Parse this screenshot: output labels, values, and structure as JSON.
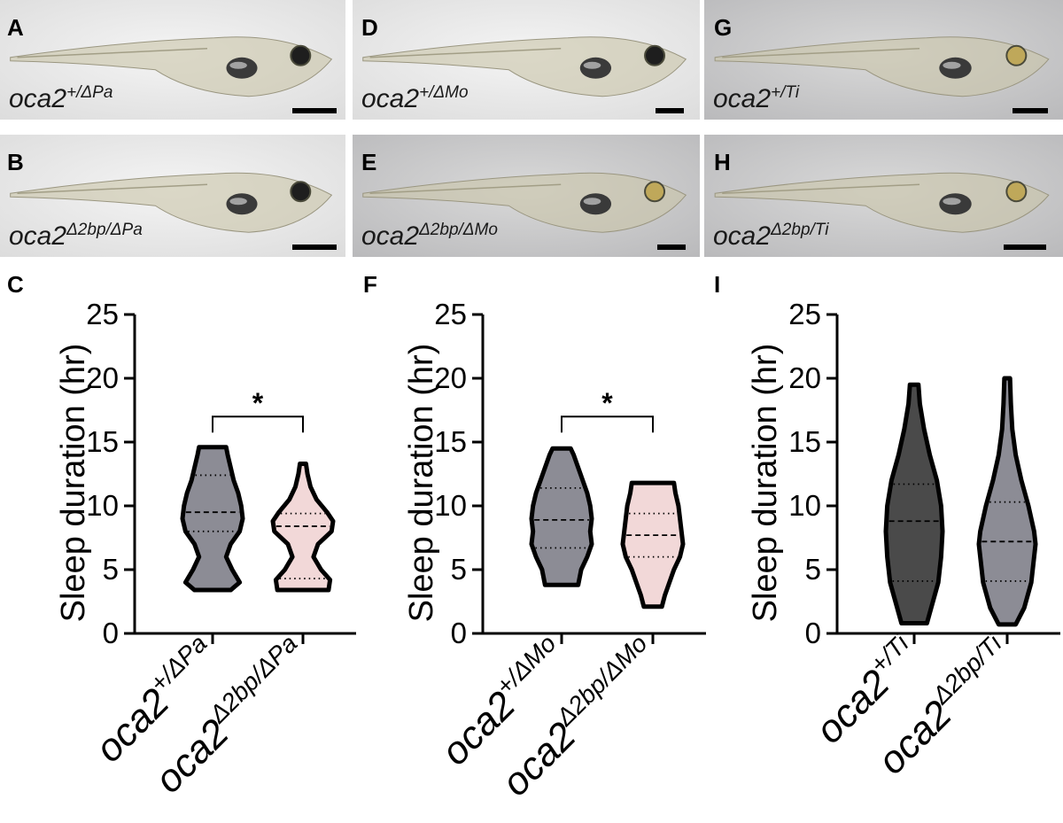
{
  "photos": [
    {
      "letter": "A",
      "genotype": {
        "base": "oca2",
        "sup": "+/ΔPa"
      },
      "tone": "bright"
    },
    {
      "letter": "B",
      "genotype": {
        "base": "oca2",
        "sup": "Δ2bp/ΔPa"
      },
      "tone": "bright"
    },
    {
      "letter": "D",
      "genotype": {
        "base": "oca2",
        "sup": "+/ΔMo"
      },
      "tone": "bright"
    },
    {
      "letter": "E",
      "genotype": {
        "base": "oca2",
        "sup": "Δ2bp/ΔMo"
      },
      "tone": "grey"
    },
    {
      "letter": "G",
      "genotype": {
        "base": "oca2",
        "sup": "+/Ti"
      },
      "tone": "grey"
    },
    {
      "letter": "H",
      "genotype": {
        "base": "oca2",
        "sup": "Δ2bp/Ti"
      },
      "tone": "grey"
    }
  ],
  "chart_data": [
    {
      "type": "violin",
      "panel": "C",
      "ylabel": "Sleep duration (hr)",
      "ylim": [
        0,
        25
      ],
      "yticks": [
        0,
        5,
        10,
        15,
        20,
        25
      ],
      "categories": [
        {
          "base": "oca2",
          "sup": "+/ΔPa"
        },
        {
          "base": "oca2",
          "sup": "Δ2bp/ΔPa"
        }
      ],
      "series": [
        {
          "min": 3.4,
          "max": 14.6,
          "q1": 8.0,
          "median": 9.5,
          "q3": 12.4,
          "color": "#8c8c95",
          "shape": [
            [
              3.4,
              0.6
            ],
            [
              4.0,
              0.9
            ],
            [
              5,
              0.65
            ],
            [
              6,
              0.45
            ],
            [
              7,
              0.6
            ],
            [
              8,
              0.9
            ],
            [
              9,
              1.0
            ],
            [
              10,
              0.95
            ],
            [
              11,
              0.85
            ],
            [
              12,
              0.7
            ],
            [
              13,
              0.6
            ],
            [
              14,
              0.5
            ],
            [
              14.6,
              0.45
            ]
          ]
        },
        {
          "min": 3.4,
          "max": 13.3,
          "q1": 4.3,
          "median": 8.4,
          "q3": 9.4,
          "color": "#f2d8d8",
          "shape": [
            [
              3.4,
              0.85
            ],
            [
              4.2,
              0.9
            ],
            [
              5,
              0.6
            ],
            [
              6,
              0.35
            ],
            [
              7,
              0.5
            ],
            [
              8,
              0.95
            ],
            [
              8.8,
              1.0
            ],
            [
              9.5,
              0.8
            ],
            [
              10.5,
              0.45
            ],
            [
              11.5,
              0.25
            ],
            [
              12.5,
              0.15
            ],
            [
              13.3,
              0.1
            ]
          ]
        }
      ],
      "significance": {
        "pair": [
          0,
          1
        ],
        "label": "*",
        "y": 17
      }
    },
    {
      "type": "violin",
      "panel": "F",
      "ylabel": "Sleep duration (hr)",
      "ylim": [
        0,
        25
      ],
      "yticks": [
        0,
        5,
        10,
        15,
        20,
        25
      ],
      "categories": [
        {
          "base": "oca2",
          "sup": "+/ΔMo"
        },
        {
          "base": "oca2",
          "sup": "Δ2bp/ΔMo"
        }
      ],
      "series": [
        {
          "min": 3.8,
          "max": 14.5,
          "q1": 6.7,
          "median": 8.9,
          "q3": 11.4,
          "color": "#8c8c95",
          "shape": [
            [
              3.8,
              0.55
            ],
            [
              5,
              0.65
            ],
            [
              6,
              0.85
            ],
            [
              7,
              1.0
            ],
            [
              8,
              0.95
            ],
            [
              9,
              1.0
            ],
            [
              10,
              0.95
            ],
            [
              11,
              0.85
            ],
            [
              12,
              0.7
            ],
            [
              13,
              0.55
            ],
            [
              14,
              0.4
            ],
            [
              14.5,
              0.3
            ]
          ]
        },
        {
          "min": 2.1,
          "max": 11.8,
          "q1": 6.0,
          "median": 7.7,
          "q3": 9.4,
          "color": "#f2d8d8",
          "shape": [
            [
              2.1,
              0.3
            ],
            [
              3,
              0.4
            ],
            [
              4,
              0.55
            ],
            [
              5,
              0.7
            ],
            [
              6,
              0.9
            ],
            [
              7,
              1.0
            ],
            [
              8,
              0.95
            ],
            [
              9,
              0.9
            ],
            [
              10,
              0.85
            ],
            [
              11,
              0.75
            ],
            [
              11.8,
              0.7
            ]
          ]
        }
      ],
      "significance": {
        "pair": [
          0,
          1
        ],
        "label": "*",
        "y": 17
      }
    },
    {
      "type": "violin",
      "panel": "I",
      "ylabel": "Sleep duration (hr)",
      "ylim": [
        0,
        25
      ],
      "yticks": [
        0,
        5,
        10,
        15,
        20,
        25
      ],
      "categories": [
        {
          "base": "oca2",
          "sup": "+/Ti"
        },
        {
          "base": "oca2",
          "sup": "Δ2bp/Ti"
        }
      ],
      "series": [
        {
          "min": 0.8,
          "max": 19.5,
          "q1": 4.1,
          "median": 8.8,
          "q3": 11.7,
          "color": "#4a4a4a",
          "shape": [
            [
              0.8,
              0.45
            ],
            [
              2,
              0.6
            ],
            [
              4,
              0.85
            ],
            [
              6,
              0.95
            ],
            [
              8,
              1.0
            ],
            [
              10,
              0.95
            ],
            [
              12,
              0.8
            ],
            [
              14,
              0.55
            ],
            [
              16,
              0.35
            ],
            [
              18,
              0.2
            ],
            [
              19.5,
              0.15
            ]
          ]
        },
        {
          "min": 0.7,
          "max": 20.0,
          "q1": 4.1,
          "median": 7.2,
          "q3": 10.3,
          "color": "#8c8c95",
          "shape": [
            [
              0.7,
              0.3
            ],
            [
              2,
              0.6
            ],
            [
              4,
              0.85
            ],
            [
              6,
              0.95
            ],
            [
              7,
              1.0
            ],
            [
              8,
              0.95
            ],
            [
              10,
              0.75
            ],
            [
              12,
              0.5
            ],
            [
              14,
              0.3
            ],
            [
              16,
              0.18
            ],
            [
              18,
              0.13
            ],
            [
              20.0,
              0.1
            ]
          ]
        }
      ],
      "significance": null
    }
  ]
}
